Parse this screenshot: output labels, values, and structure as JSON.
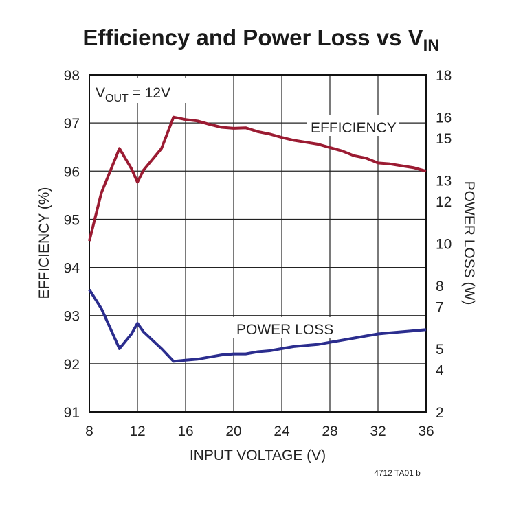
{
  "chart_data": {
    "type": "line",
    "title": {
      "main": "Efficiency and Power Loss vs V",
      "subscript": "IN"
    },
    "xlabel": "INPUT VOLTAGE (V)",
    "ylabel_left": "EFFICIENCY (%)",
    "ylabel_right": "POWER LOSS (W)",
    "xlim": [
      8,
      36
    ],
    "ylim_left": [
      91,
      98
    ],
    "ylim_right": [
      2,
      18
    ],
    "x_ticks": [
      "8",
      "12",
      "16",
      "20",
      "24",
      "28",
      "32",
      "36"
    ],
    "y_left_ticks": [
      "91",
      "92",
      "93",
      "94",
      "95",
      "96",
      "97",
      "98"
    ],
    "y_right_ticks": [
      "2",
      "4",
      "5",
      "7",
      "8",
      "10",
      "12",
      "13",
      "15",
      "16",
      "18"
    ],
    "grid": true,
    "condition": {
      "prefix": "V",
      "subscript": "OUT",
      "suffix": " = 12V"
    },
    "series": [
      {
        "name": "EFFICIENCY",
        "axis": "left",
        "color": "#9b1b32",
        "x": [
          8,
          9,
          10.5,
          11.5,
          12,
          12.5,
          14,
          15,
          16,
          17,
          18,
          19,
          20,
          21,
          22,
          23,
          24,
          25,
          26,
          27,
          28,
          29,
          30,
          31,
          32,
          33,
          34,
          35,
          36
        ],
        "y": [
          94.55,
          95.55,
          96.47,
          96.05,
          95.77,
          96.02,
          96.47,
          97.12,
          97.07,
          97.04,
          96.97,
          96.91,
          96.89,
          96.9,
          96.82,
          96.77,
          96.7,
          96.64,
          96.6,
          96.56,
          96.49,
          96.42,
          96.32,
          96.27,
          96.17,
          96.15,
          96.11,
          96.07,
          96.0
        ]
      },
      {
        "name": "POWER LOSS",
        "axis": "right",
        "color": "#2b2d8e",
        "x": [
          8,
          9,
          10.5,
          11.5,
          12,
          12.5,
          14,
          15,
          16,
          17,
          18,
          19,
          20,
          21,
          22,
          23,
          24,
          25,
          26,
          27,
          28,
          29,
          30,
          31,
          32,
          33,
          34,
          35,
          36
        ],
        "y": [
          7.8,
          6.9,
          5.0,
          5.7,
          6.2,
          5.8,
          5.0,
          4.4,
          4.45,
          4.5,
          4.6,
          4.7,
          4.75,
          4.75,
          4.85,
          4.9,
          5.0,
          5.1,
          5.15,
          5.2,
          5.3,
          5.4,
          5.5,
          5.6,
          5.7,
          5.75,
          5.8,
          5.85,
          5.9
        ]
      }
    ],
    "annotations": {
      "efficiency_label": "EFFICIENCY",
      "power_loss_label": "POWER LOSS"
    },
    "footnote": "4712 TA01 b"
  }
}
